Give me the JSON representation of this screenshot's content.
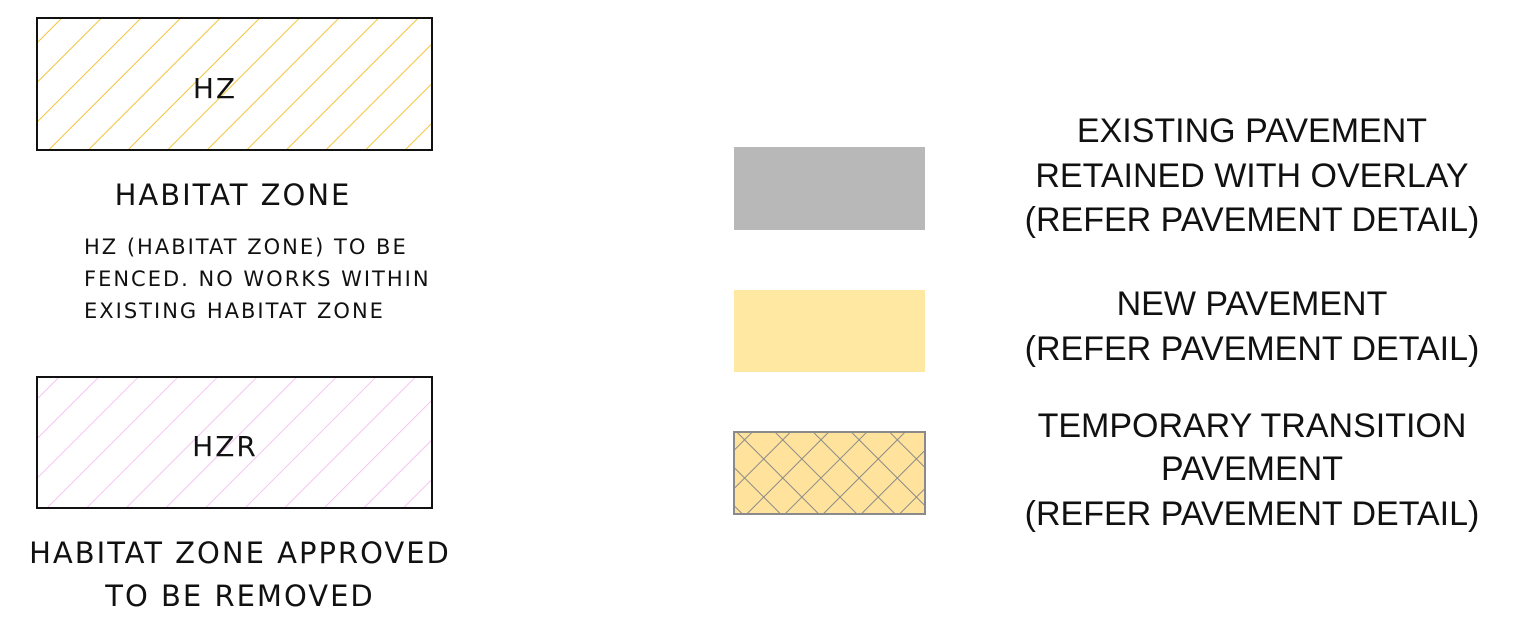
{
  "left_legend": [
    {
      "code": "HZ",
      "title": [
        "HABITAT ZONE"
      ],
      "note": [
        "HZ (HABITAT ZONE) TO BE",
        "FENCED. NO WORKS WITHIN",
        "EXISTING HABITAT ZONE"
      ]
    },
    {
      "code": "HZR",
      "title": [
        "HABITAT ZONE APPROVED",
        "TO BE REMOVED"
      ]
    }
  ],
  "right_legend": [
    {
      "lines": [
        "EXISTING PAVEMENT",
        "RETAINED WITH OVERLAY",
        "(REFER PAVEMENT DETAIL)"
      ]
    },
    {
      "lines": [
        "NEW PAVEMENT",
        "(REFER PAVEMENT DETAIL)"
      ]
    },
    {
      "lines": [
        "TEMPORARY TRANSITION",
        "PAVEMENT",
        "(REFER PAVEMENT DETAIL)"
      ]
    }
  ]
}
